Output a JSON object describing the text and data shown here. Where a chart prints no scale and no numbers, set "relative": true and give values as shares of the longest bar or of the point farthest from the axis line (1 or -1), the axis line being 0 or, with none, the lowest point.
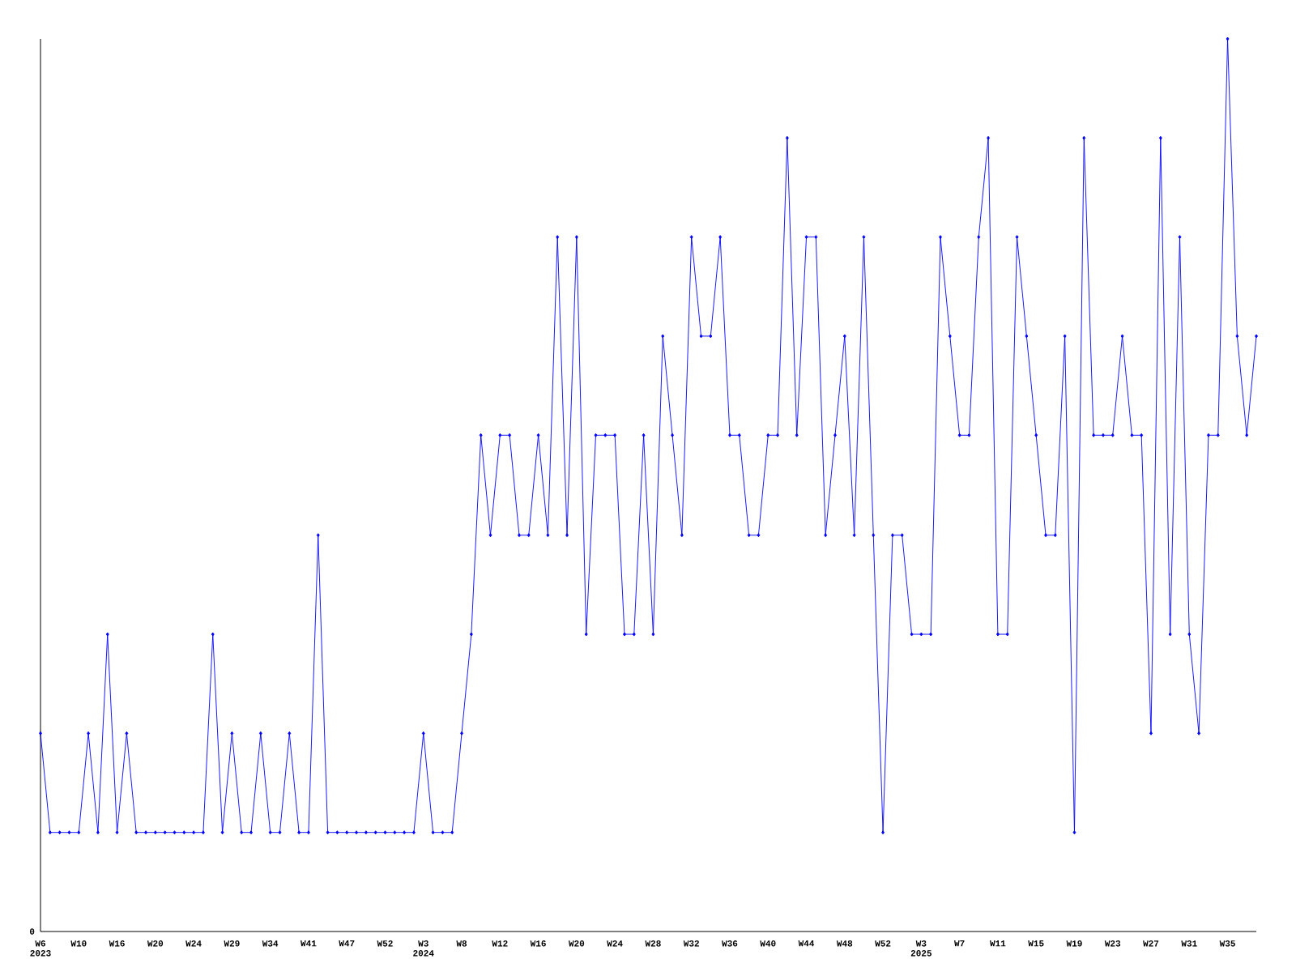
{
  "chart_data": {
    "type": "line",
    "relative": true,
    "color": "#0000ff",
    "marker": "diamond",
    "line_style": "solid",
    "categories": [
      "W6 2023",
      null,
      null,
      null,
      "W10",
      null,
      null,
      null,
      "W16",
      null,
      null,
      null,
      "W20",
      null,
      null,
      null,
      "W24",
      null,
      null,
      null,
      "W29",
      null,
      null,
      null,
      "W34",
      null,
      null,
      null,
      "W41",
      null,
      null,
      null,
      "W47",
      null,
      null,
      null,
      "W52",
      null,
      null,
      null,
      "W3 2024",
      null,
      null,
      null,
      "W8",
      null,
      null,
      null,
      "W12",
      null,
      null,
      null,
      "W16",
      null,
      null,
      null,
      "W20",
      null,
      null,
      null,
      "W24",
      null,
      null,
      null,
      "W28",
      null,
      null,
      null,
      "W32",
      null,
      null,
      null,
      "W36",
      null,
      null,
      null,
      "W40",
      null,
      null,
      null,
      "W44",
      null,
      null,
      null,
      "W48",
      null,
      null,
      null,
      "W52",
      null,
      null,
      null,
      "W3 2025",
      null,
      null,
      null,
      "W7",
      null,
      null,
      null,
      "W11",
      null,
      null,
      null,
      "W15",
      null,
      null,
      null,
      "W19",
      null,
      null,
      null,
      "W23",
      null,
      null,
      null,
      "W27",
      null,
      null,
      null,
      "W31",
      null,
      null,
      null,
      "W35",
      null,
      null,
      null
    ],
    "values": [
      0.222,
      0.111,
      0.111,
      0.111,
      0.111,
      0.222,
      0.111,
      0.333,
      0.111,
      0.222,
      0.111,
      0.111,
      0.111,
      0.111,
      0.111,
      0.111,
      0.111,
      0.111,
      0.333,
      0.111,
      0.222,
      0.111,
      0.111,
      0.222,
      0.111,
      0.111,
      0.222,
      0.111,
      0.111,
      0.444,
      0.111,
      0.111,
      0.111,
      0.111,
      0.111,
      0.111,
      0.111,
      0.111,
      0.111,
      0.111,
      0.222,
      0.111,
      0.111,
      0.111,
      0.222,
      0.333,
      0.556,
      0.444,
      0.556,
      0.556,
      0.444,
      0.444,
      0.556,
      0.444,
      0.778,
      0.444,
      0.778,
      0.333,
      0.556,
      0.556,
      0.556,
      0.333,
      0.333,
      0.556,
      0.333,
      0.667,
      0.556,
      0.444,
      0.778,
      0.667,
      0.667,
      0.778,
      0.556,
      0.556,
      0.444,
      0.444,
      0.556,
      0.556,
      0.889,
      0.556,
      0.778,
      0.778,
      0.444,
      0.556,
      0.667,
      0.444,
      0.778,
      0.444,
      0.111,
      0.444,
      0.444,
      0.333,
      0.333,
      0.333,
      0.778,
      0.667,
      0.556,
      0.556,
      0.778,
      0.889,
      0.333,
      0.333,
      0.778,
      0.667,
      0.556,
      0.444,
      0.444,
      0.667,
      0.111,
      0.889,
      0.556,
      0.556,
      0.556,
      0.667,
      0.556,
      0.556,
      0.222,
      0.889,
      0.333,
      0.778,
      0.333,
      0.222,
      0.556,
      0.556,
      1,
      0.667,
      0.556,
      0.667
    ],
    "annotations": [
      "0"
    ]
  }
}
